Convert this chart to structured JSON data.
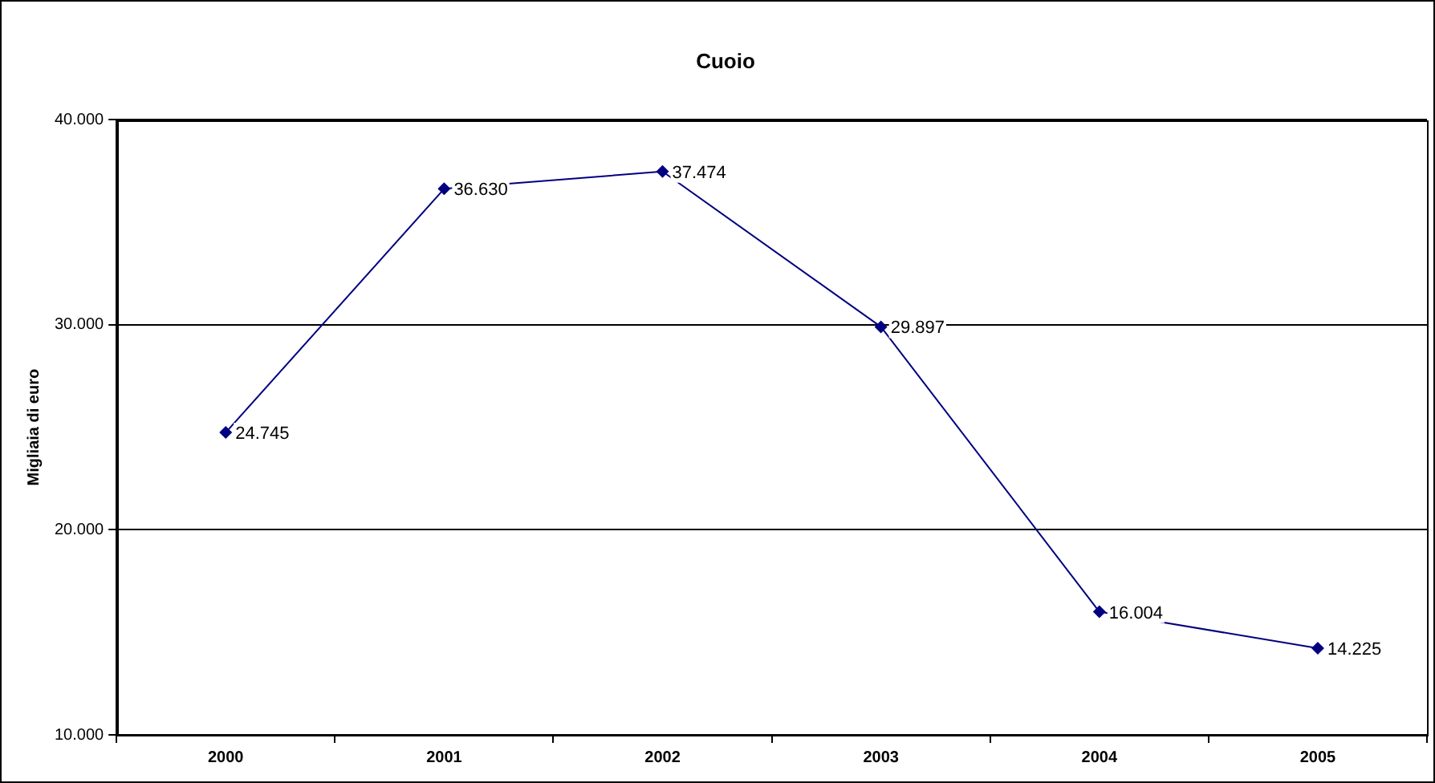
{
  "chart_data": {
    "type": "line",
    "title": "Cuoio",
    "ylabel": "Migliaia di euro",
    "categories": [
      "2000",
      "2001",
      "2002",
      "2003",
      "2004",
      "2005"
    ],
    "series": [
      {
        "color": "#000080",
        "values": [
          24745,
          36630,
          37474,
          29897,
          16004,
          14225
        ],
        "value_labels": [
          "24.745",
          "36.630",
          "37.474",
          "29.897",
          "16.004",
          "14.225"
        ]
      }
    ],
    "ylim": [
      10000,
      40000
    ],
    "yticks": [
      {
        "value": 10000,
        "label": "10.000"
      },
      {
        "value": 20000,
        "label": "20.000"
      },
      {
        "value": 30000,
        "label": "30.000"
      },
      {
        "value": 40000,
        "label": "40.000"
      }
    ],
    "grid": "y",
    "legend": false,
    "marker": "diamond",
    "line_style": "solid"
  }
}
